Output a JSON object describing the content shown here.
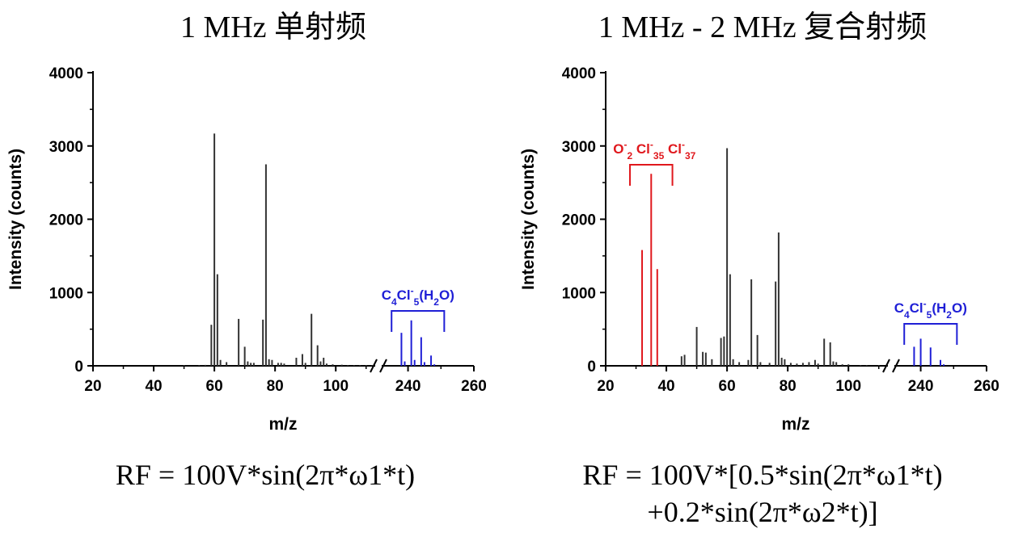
{
  "page": {
    "left_title": "1 MHz 单射频",
    "right_title": "1 MHz - 2 MHz 复合射频",
    "left_formula": "RF = 100V*sin(2π*ω1*t)",
    "right_formula_line1": "RF = 100V*[0.5*sin(2π*ω1*t)",
    "right_formula_line2": "+0.2*sin(2π*ω2*t)]"
  },
  "colors": {
    "axis": "#000000",
    "peaks": "#333333",
    "blue": "#1f1fd6",
    "red": "#e0181d"
  },
  "chart_data": [
    {
      "type": "bar",
      "title": "1 MHz 单射频",
      "xlabel": "m/z",
      "ylabel": "Intensity (counts)",
      "ylim": [
        0,
        4000
      ],
      "yticks": [
        0,
        1000,
        2000,
        3000,
        4000
      ],
      "x_segments": [
        {
          "range": [
            20,
            113
          ],
          "ticks": [
            20,
            40,
            60,
            80,
            100
          ]
        },
        {
          "range": [
            232,
            260
          ],
          "ticks": [
            240,
            260
          ]
        }
      ],
      "axis_break": true,
      "series": [
        {
          "name": "black",
          "color": "#333333",
          "points": [
            [
              50,
              10
            ],
            [
              55,
              10
            ],
            [
              57,
              12
            ],
            [
              59,
              560
            ],
            [
              60,
              3170
            ],
            [
              61,
              1250
            ],
            [
              62,
              80
            ],
            [
              64,
              50
            ],
            [
              68,
              640
            ],
            [
              70,
              260
            ],
            [
              71,
              60
            ],
            [
              72,
              40
            ],
            [
              73,
              40
            ],
            [
              76,
              630
            ],
            [
              77,
              2750
            ],
            [
              78,
              90
            ],
            [
              79,
              80
            ],
            [
              81,
              40
            ],
            [
              82,
              40
            ],
            [
              83,
              30
            ],
            [
              87,
              110
            ],
            [
              89,
              160
            ],
            [
              90,
              40
            ],
            [
              92,
              710
            ],
            [
              94,
              280
            ],
            [
              95,
              60
            ],
            [
              96,
              110
            ],
            [
              97,
              30
            ],
            [
              99,
              20
            ],
            [
              102,
              15
            ],
            [
              104,
              10
            ],
            [
              106,
              10
            ],
            [
              108,
              10
            ],
            [
              110,
              10
            ],
            [
              112,
              10
            ]
          ]
        },
        {
          "name": "blue",
          "color": "#1f1fd6",
          "points": [
            [
              238,
              450
            ],
            [
              239,
              60
            ],
            [
              241,
              620
            ],
            [
              242,
              80
            ],
            [
              244,
              390
            ],
            [
              245,
              50
            ],
            [
              247,
              140
            ],
            [
              248,
              20
            ]
          ]
        }
      ],
      "annotations": [
        {
          "text": "C4Cl5-(H2O)",
          "color": "#1f1fd6",
          "bracket": [
            235,
            251
          ]
        }
      ]
    },
    {
      "type": "bar",
      "title": "1 MHz - 2 MHz 复合射频",
      "xlabel": "m/z",
      "ylabel": "Intensity (counts)",
      "ylim": [
        0,
        4000
      ],
      "yticks": [
        0,
        1000,
        2000,
        3000,
        4000
      ],
      "x_segments": [
        {
          "range": [
            20,
            113
          ],
          "ticks": [
            20,
            40,
            60,
            80,
            100
          ]
        },
        {
          "range": [
            232,
            260
          ],
          "ticks": [
            240,
            260
          ]
        }
      ],
      "axis_break": true,
      "series": [
        {
          "name": "red",
          "color": "#e0181d",
          "points": [
            [
              32,
              1580
            ],
            [
              35,
              2620
            ],
            [
              37,
              1320
            ]
          ]
        },
        {
          "name": "black",
          "color": "#333333",
          "points": [
            [
              45,
              130
            ],
            [
              46,
              150
            ],
            [
              50,
              530
            ],
            [
              52,
              190
            ],
            [
              53,
              180
            ],
            [
              55,
              90
            ],
            [
              58,
              380
            ],
            [
              59,
              400
            ],
            [
              60,
              2970
            ],
            [
              61,
              1250
            ],
            [
              62,
              90
            ],
            [
              64,
              50
            ],
            [
              67,
              80
            ],
            [
              68,
              1180
            ],
            [
              70,
              420
            ],
            [
              71,
              50
            ],
            [
              74,
              40
            ],
            [
              76,
              1150
            ],
            [
              77,
              1820
            ],
            [
              78,
              110
            ],
            [
              79,
              90
            ],
            [
              81,
              40
            ],
            [
              83,
              30
            ],
            [
              85,
              40
            ],
            [
              87,
              50
            ],
            [
              89,
              80
            ],
            [
              90,
              30
            ],
            [
              92,
              370
            ],
            [
              94,
              320
            ],
            [
              95,
              60
            ],
            [
              96,
              50
            ],
            [
              98,
              20
            ],
            [
              100,
              20
            ],
            [
              104,
              10
            ],
            [
              106,
              10
            ],
            [
              110,
              10
            ]
          ]
        },
        {
          "name": "blue",
          "color": "#1f1fd6",
          "points": [
            [
              238,
              260
            ],
            [
              240,
              370
            ],
            [
              243,
              250
            ],
            [
              246,
              80
            ],
            [
              247,
              20
            ]
          ]
        }
      ],
      "annotations": [
        {
          "text": "C4Cl5-(H2O)",
          "color": "#1f1fd6",
          "bracket": [
            235,
            251
          ]
        },
        {
          "text": "O2- Cl-35 Cl-37",
          "color": "#e0181d",
          "bracket": [
            28,
            42
          ]
        }
      ]
    }
  ]
}
